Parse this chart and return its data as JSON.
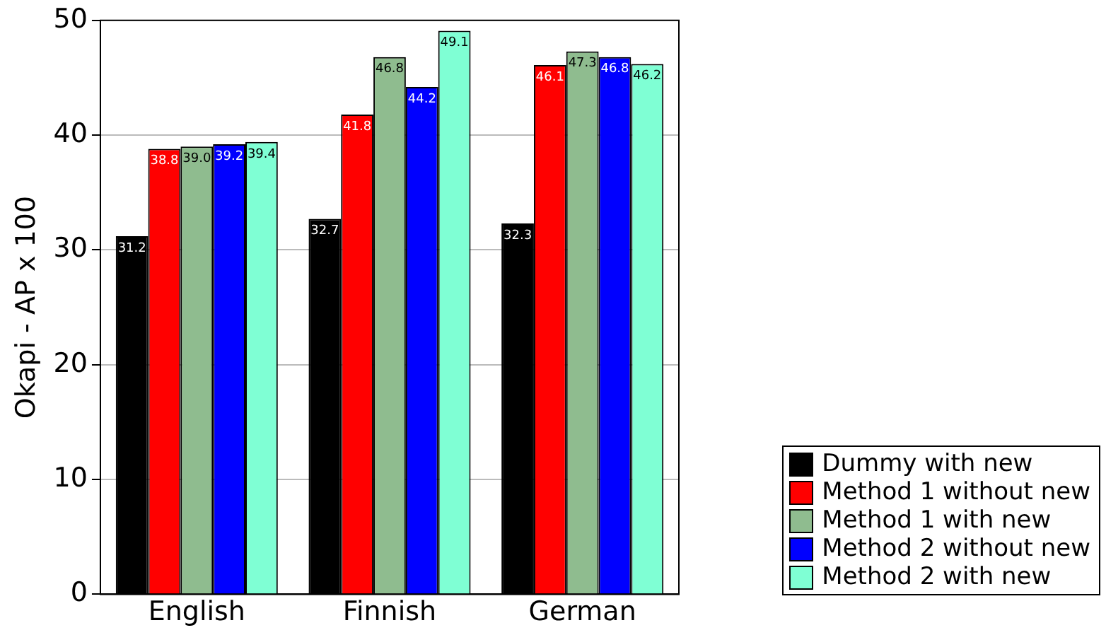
{
  "chart_data": {
    "type": "bar",
    "ylabel": "Okapi - AP x 100",
    "categories": [
      "English",
      "Finnish",
      "German"
    ],
    "series": [
      {
        "name": "Dummy with new",
        "color": "#000000",
        "values": [
          31.2,
          32.7,
          32.3
        ]
      },
      {
        "name": "Method 1 without new",
        "color": "#ff0000",
        "values": [
          38.8,
          41.8,
          46.1
        ]
      },
      {
        "name": "Method 1 with new",
        "color": "#8fbc8f",
        "values": [
          39.0,
          46.8,
          47.3
        ]
      },
      {
        "name": "Method 2 without new",
        "color": "#0000ff",
        "values": [
          39.2,
          44.2,
          46.8
        ]
      },
      {
        "name": "Method 2 with new",
        "color": "#7fffd4",
        "values": [
          39.4,
          49.1,
          46.2
        ]
      }
    ],
    "value_labels": [
      [
        "31.2",
        "32.7",
        "32.3"
      ],
      [
        "38.8",
        "41.8",
        "46.1"
      ],
      [
        "39.0",
        "46.8",
        "47.3"
      ],
      [
        "39.2",
        "44.2",
        "46.8"
      ],
      [
        "39.4",
        "49.1",
        "46.2"
      ]
    ],
    "ylim": [
      0,
      50
    ],
    "yticks": [
      0,
      10,
      20,
      30,
      40,
      50
    ],
    "grid": "y",
    "legend": "bottom right"
  }
}
